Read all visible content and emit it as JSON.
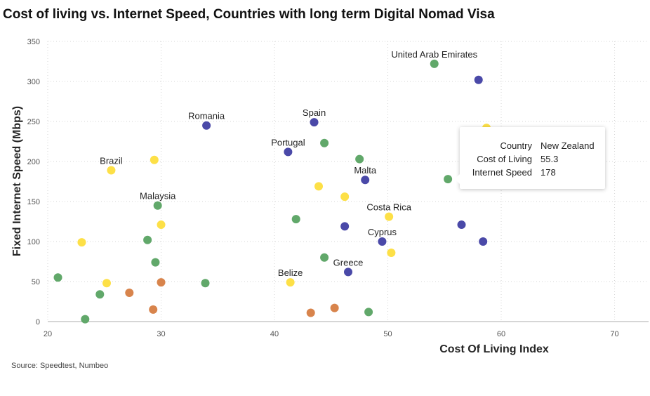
{
  "title": "Cost of living vs. Internet Speed, Countries with long term Digital Nomad Visa",
  "source": "Source: Speedtest, Numbeo",
  "tooltip": {
    "rows": [
      {
        "key": "Country",
        "value": "New Zealand"
      },
      {
        "key": "Cost of Living",
        "value": "55.3"
      },
      {
        "key": "Internet Speed",
        "value": "178"
      }
    ]
  },
  "chart_data": {
    "type": "scatter",
    "xlabel": "Cost Of Living Index",
    "ylabel": "Fixed Internet Speed (Mbps)",
    "xlim": [
      20,
      73
    ],
    "ylim": [
      0,
      350
    ],
    "xticks": [
      20,
      30,
      40,
      50,
      60,
      70
    ],
    "yticks": [
      0,
      50,
      100,
      150,
      200,
      250,
      300,
      350
    ],
    "grid": true,
    "legend": "none",
    "colors": {
      "blue": "#4a49a8",
      "green": "#61a86a",
      "yellow": "#fde047",
      "orange": "#d8844c"
    },
    "points": [
      {
        "x": 34.0,
        "y": 245,
        "color": "blue",
        "label": "Romania"
      },
      {
        "x": 43.5,
        "y": 249,
        "color": "blue",
        "label": "Spain"
      },
      {
        "x": 41.2,
        "y": 212,
        "color": "blue",
        "label": "Portugal"
      },
      {
        "x": 48.0,
        "y": 177,
        "color": "blue",
        "label": "Malta"
      },
      {
        "x": 49.5,
        "y": 100,
        "color": "blue",
        "label": "Cyprus"
      },
      {
        "x": 46.5,
        "y": 62,
        "color": "blue",
        "label": "Greece"
      },
      {
        "x": 58.0,
        "y": 302,
        "color": "blue",
        "label": ""
      },
      {
        "x": 56.5,
        "y": 121,
        "color": "blue",
        "label": ""
      },
      {
        "x": 58.4,
        "y": 100,
        "color": "blue",
        "label": ""
      },
      {
        "x": 46.2,
        "y": 119,
        "color": "blue",
        "label": ""
      },
      {
        "x": 54.1,
        "y": 322,
        "color": "green",
        "label": "United Arab Emirates"
      },
      {
        "x": 29.7,
        "y": 145,
        "color": "green",
        "label": "Malaysia"
      },
      {
        "x": 55.3,
        "y": 178,
        "color": "green",
        "label": ""
      },
      {
        "x": 44.4,
        "y": 223,
        "color": "green",
        "label": ""
      },
      {
        "x": 47.5,
        "y": 203,
        "color": "green",
        "label": ""
      },
      {
        "x": 41.9,
        "y": 128,
        "color": "green",
        "label": ""
      },
      {
        "x": 44.4,
        "y": 80,
        "color": "green",
        "label": ""
      },
      {
        "x": 48.3,
        "y": 12,
        "color": "green",
        "label": ""
      },
      {
        "x": 28.8,
        "y": 102,
        "color": "green",
        "label": ""
      },
      {
        "x": 29.5,
        "y": 74,
        "color": "green",
        "label": ""
      },
      {
        "x": 20.9,
        "y": 55,
        "color": "green",
        "label": ""
      },
      {
        "x": 24.6,
        "y": 34,
        "color": "green",
        "label": ""
      },
      {
        "x": 23.3,
        "y": 3,
        "color": "green",
        "label": ""
      },
      {
        "x": 33.9,
        "y": 48,
        "color": "green",
        "label": ""
      },
      {
        "x": 25.6,
        "y": 189,
        "color": "yellow",
        "label": "Brazil"
      },
      {
        "x": 50.1,
        "y": 131,
        "color": "yellow",
        "label": "Costa Rica"
      },
      {
        "x": 41.4,
        "y": 49,
        "color": "yellow",
        "label": "Belize"
      },
      {
        "x": 29.4,
        "y": 202,
        "color": "yellow",
        "label": ""
      },
      {
        "x": 30.0,
        "y": 121,
        "color": "yellow",
        "label": ""
      },
      {
        "x": 23.0,
        "y": 99,
        "color": "yellow",
        "label": ""
      },
      {
        "x": 25.2,
        "y": 48,
        "color": "yellow",
        "label": ""
      },
      {
        "x": 43.9,
        "y": 169,
        "color": "yellow",
        "label": ""
      },
      {
        "x": 46.2,
        "y": 156,
        "color": "yellow",
        "label": ""
      },
      {
        "x": 50.3,
        "y": 86,
        "color": "yellow",
        "label": ""
      },
      {
        "x": 58.7,
        "y": 242,
        "color": "yellow",
        "label": ""
      },
      {
        "x": 27.2,
        "y": 36,
        "color": "orange",
        "label": ""
      },
      {
        "x": 30.0,
        "y": 49,
        "color": "orange",
        "label": ""
      },
      {
        "x": 29.3,
        "y": 15,
        "color": "orange",
        "label": ""
      },
      {
        "x": 43.2,
        "y": 11,
        "color": "orange",
        "label": ""
      },
      {
        "x": 45.3,
        "y": 17,
        "color": "orange",
        "label": ""
      }
    ]
  }
}
